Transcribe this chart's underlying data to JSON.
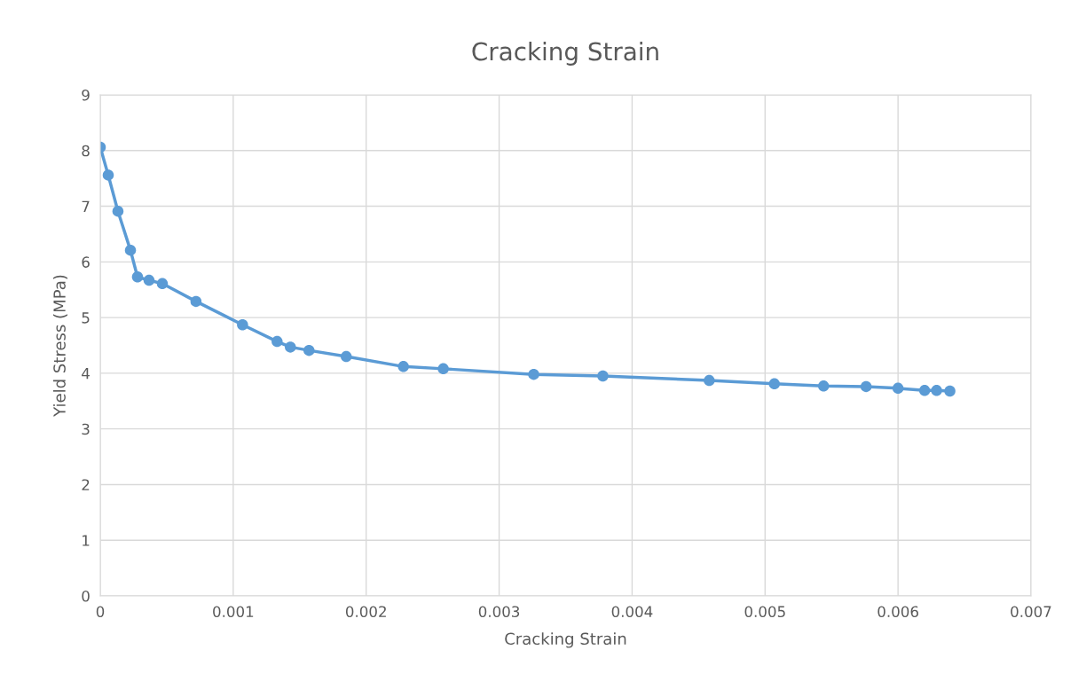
{
  "chart_data": {
    "type": "line",
    "title": "Cracking Strain",
    "xlabel": "Cracking Strain",
    "ylabel": "Yield Stress (MPa)",
    "x": [
      0,
      6e-05,
      0.000133,
      0.000227,
      0.00028,
      0.000367,
      0.000467,
      0.00072,
      0.00107,
      0.00133,
      0.00143,
      0.00157,
      0.00185,
      0.00228,
      0.00258,
      0.00326,
      0.00378,
      0.00458,
      0.00507,
      0.00544,
      0.00576,
      0.006,
      0.0062,
      0.00629,
      0.00639
    ],
    "series": [
      {
        "color": "#5b9bd5",
        "values": [
          8.06,
          7.56,
          6.91,
          6.21,
          5.73,
          5.67,
          5.61,
          5.29,
          4.87,
          4.57,
          4.47,
          4.41,
          4.3,
          4.12,
          4.08,
          3.98,
          3.95,
          3.87,
          3.81,
          3.77,
          3.76,
          3.73,
          3.69,
          3.69,
          3.68
        ]
      }
    ],
    "xlim": [
      0,
      0.007
    ],
    "xticks": [
      0,
      0.001,
      0.002,
      0.003,
      0.004,
      0.005,
      0.006,
      0.007
    ],
    "ylim": [
      0,
      9
    ],
    "yticks": [
      0,
      1,
      2,
      3,
      4,
      5,
      6,
      7,
      8,
      9
    ],
    "grid": true,
    "marker": "circle",
    "line_style": "solid"
  }
}
